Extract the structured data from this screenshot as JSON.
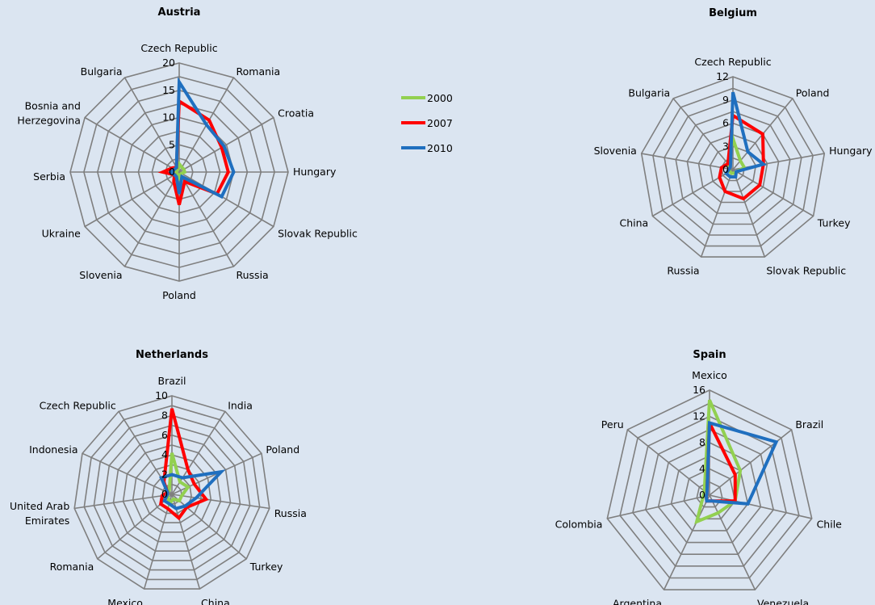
{
  "colors": {
    "2000": "#92d050",
    "2007": "#ff0000",
    "2010": "#1f6fbf",
    "grid": "#7f7f7f",
    "background": "#dbe5f1"
  },
  "legend": [
    "2000",
    "2007",
    "2010"
  ],
  "chart_data": [
    {
      "type": "radar",
      "title": "Austria",
      "categories": [
        "Czech Republic",
        "Romania",
        "Croatia",
        "Hungary",
        "Slovak Republic",
        "Russia",
        "Poland",
        "Slovenia",
        "Ukraine",
        "Serbia",
        "Bosnia and Herzegovina",
        "Bulgaria"
      ],
      "ylim": [
        0,
        20
      ],
      "ticks": [
        0,
        5,
        10,
        15,
        20
      ],
      "series": [
        {
          "name": "2000",
          "values": [
            1.5,
            1.0,
            1.0,
            1.0,
            0.5,
            0.5,
            1.0,
            0.5,
            0.5,
            0.5,
            0.5,
            0.5
          ]
        },
        {
          "name": "2007",
          "values": [
            13,
            11,
            9,
            9,
            8,
            2,
            6,
            2,
            1,
            3,
            1.5,
            1
          ]
        },
        {
          "name": "2010",
          "values": [
            16.5,
            10,
            9.5,
            10,
            9,
            1,
            4,
            1,
            1,
            1.5,
            1,
            1
          ]
        }
      ]
    },
    {
      "type": "radar",
      "title": "Belgium",
      "categories": [
        "Czech Republic",
        "Poland",
        "Hungary",
        "Turkey",
        "Slovak Republic",
        "Russia",
        "China",
        "Slovenia",
        "Bulgaria"
      ],
      "ylim": [
        0,
        12
      ],
      "ticks": [
        0,
        3,
        6,
        9,
        12
      ],
      "series": [
        {
          "name": "2000",
          "values": [
            4,
            1.5,
            1.5,
            0.5,
            0.5,
            0.5,
            0.5,
            0.5,
            1
          ]
        },
        {
          "name": "2007",
          "values": [
            7,
            6,
            4,
            4,
            4,
            3,
            2,
            1.5,
            1
          ]
        },
        {
          "name": "2010",
          "values": [
            10,
            3,
            4,
            0.5,
            1,
            1,
            1,
            0.5,
            0.5
          ]
        }
      ]
    },
    {
      "type": "radar",
      "title": "Netherlands",
      "categories": [
        "Brazil",
        "India",
        "Poland",
        "Russia",
        "Turkey",
        "China",
        "Mexico",
        "Romania",
        "United Arab Emirates",
        "Indonesia",
        "Czech Republic"
      ],
      "ylim": [
        0,
        10
      ],
      "ticks": [
        0,
        2,
        4,
        6,
        8,
        10
      ],
      "series": [
        {
          "name": "2000",
          "values": [
            4.2,
            1.5,
            1.8,
            1,
            1,
            0.5,
            1,
            0.5,
            0.5,
            0.5,
            0.5
          ]
        },
        {
          "name": "2007",
          "values": [
            8.7,
            3,
            2.5,
            3.5,
            2,
            2.5,
            1.5,
            1.5,
            1,
            0.5,
            1.5
          ]
        },
        {
          "name": "2010",
          "values": [
            2,
            2,
            5.5,
            2.5,
            1.8,
            1.5,
            1,
            1,
            0.5,
            0.5,
            2
          ]
        }
      ]
    },
    {
      "type": "radar",
      "title": "Spain",
      "categories": [
        "Mexico",
        "Brazil",
        "Chile",
        "Venezuela",
        "Argentina",
        "Colombia",
        "Peru"
      ],
      "ylim": [
        0,
        16
      ],
      "ticks": [
        0,
        4,
        8,
        12,
        16
      ],
      "series": [
        {
          "name": "2000",
          "values": [
            14.5,
            6,
            4,
            3,
            4.5,
            1,
            1
          ]
        },
        {
          "name": "2007",
          "values": [
            11,
            5,
            4,
            1,
            1,
            0.5,
            0.5
          ]
        },
        {
          "name": "2010",
          "values": [
            11,
            13,
            6,
            1,
            1,
            0.5,
            0.5
          ]
        }
      ]
    }
  ]
}
